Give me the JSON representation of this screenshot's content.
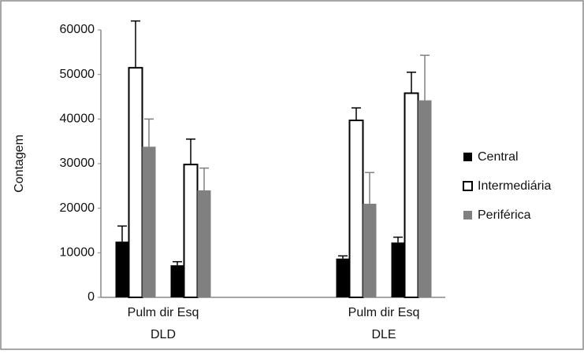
{
  "chart_data": {
    "type": "bar",
    "y_label": "Contagem",
    "categories": [
      null,
      null,
      null,
      null
    ],
    "group_labels": [
      [
        "Pulm dir Esq",
        "DLD"
      ],
      [
        "Pulm dir Esq",
        "DLE"
      ]
    ],
    "series": [
      {
        "name": "Central",
        "color": "#000000",
        "edgecolor": "#000000",
        "values": [
          12500,
          7200,
          8700,
          12300
        ],
        "errors": [
          3500,
          800,
          600,
          1200
        ]
      },
      {
        "name": "Intermediária",
        "color": "#ffffff",
        "edgecolor": "#000000",
        "values": [
          51500,
          29800,
          39700,
          45800
        ],
        "errors": [
          10500,
          5700,
          2800,
          4700
        ]
      },
      {
        "name": "Periférica",
        "color": "#808080",
        "edgecolor": "#808080",
        "values": [
          33800,
          24000,
          21000,
          44200
        ],
        "errors": [
          6200,
          5000,
          7000,
          10100
        ]
      }
    ],
    "ylim": [
      0,
      60000
    ],
    "yticks": [
      0,
      10000,
      20000,
      30000,
      40000,
      50000,
      60000
    ],
    "grid": false,
    "legend": "right"
  }
}
